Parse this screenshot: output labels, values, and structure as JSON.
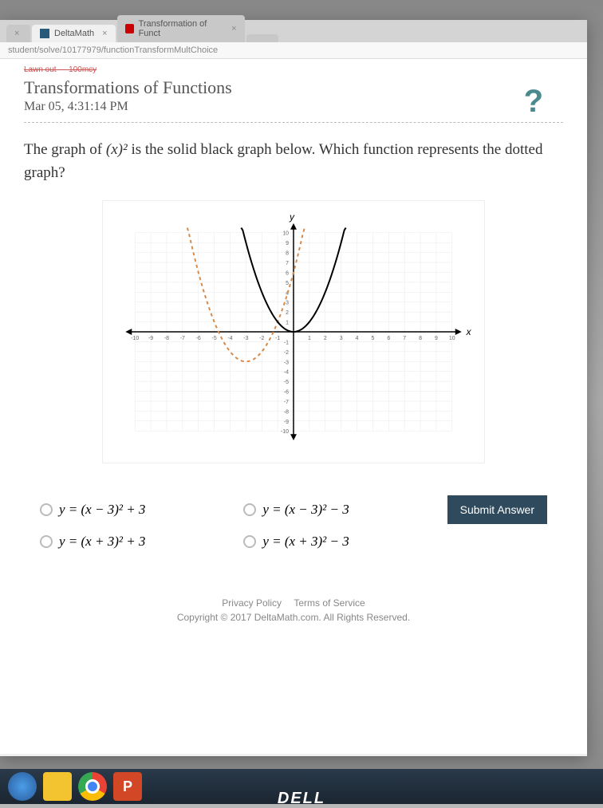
{
  "tabs": [
    {
      "label": "DeltaMath",
      "active": true
    },
    {
      "label": "Transformation of Funct",
      "active": false
    }
  ],
  "url": "student/solve/10177979/functionTransformMultChoice",
  "breadcrumb": "Lawn out — 100mcy",
  "page_title": "Transformations of Functions",
  "timestamp": "Mar 05, 4:31:14 PM",
  "help_label": "?",
  "question_pre": "The graph of ",
  "question_math": "(x)²",
  "question_post": " is the solid black graph below. Which function represents the dotted graph?",
  "graph": {
    "xlabel": "x",
    "ylabel": "y",
    "xlim": [
      -10,
      10
    ],
    "ylim": [
      -10,
      10
    ],
    "grid_color": "#e8e8e8",
    "axis_color": "#000000",
    "solid_color": "#000000",
    "dotted_color": "#d68a4a",
    "solid_vertex": [
      0,
      0
    ],
    "dotted_vertex": [
      -3,
      -3
    ],
    "tick_fontsize": 7
  },
  "choices": {
    "a": "y = (x − 3)² + 3",
    "b": "y = (x − 3)² − 3",
    "c": "y = (x + 3)² + 3",
    "d": "y = (x + 3)² − 3"
  },
  "submit_label": "Submit Answer",
  "footer": {
    "privacy": "Privacy Policy",
    "terms": "Terms of Service",
    "copyright": "Copyright © 2017 DeltaMath.com. All Rights Reserved."
  },
  "dell": "DELL"
}
